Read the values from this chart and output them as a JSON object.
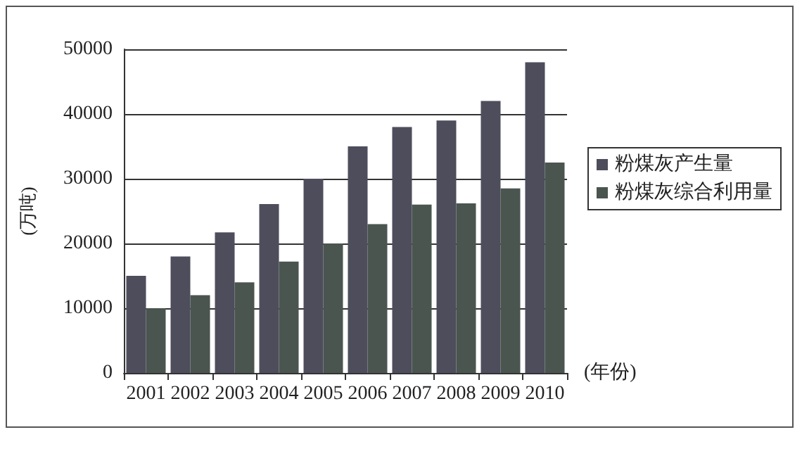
{
  "chart_data": {
    "type": "bar",
    "xlabel": "(年份)",
    "ylabel": "(万吨)",
    "categories": [
      "2001",
      "2002",
      "2003",
      "2004",
      "2005",
      "2006",
      "2007",
      "2008",
      "2009",
      "2010"
    ],
    "series": [
      {
        "name": "粉煤灰产生量",
        "color": "#4d4d5c",
        "values": [
          15000,
          18000,
          21700,
          26100,
          30000,
          35000,
          38000,
          39000,
          42000,
          48000
        ]
      },
      {
        "name": "粉煤灰综合利用量",
        "color": "#4a5550",
        "values": [
          10000,
          12000,
          14000,
          17200,
          20000,
          23000,
          26000,
          26200,
          28500,
          32500
        ]
      }
    ],
    "ylim": [
      0,
      50000
    ],
    "yticks": [
      0,
      10000,
      20000,
      30000,
      40000,
      50000
    ],
    "grid": "y",
    "legend": "right"
  }
}
